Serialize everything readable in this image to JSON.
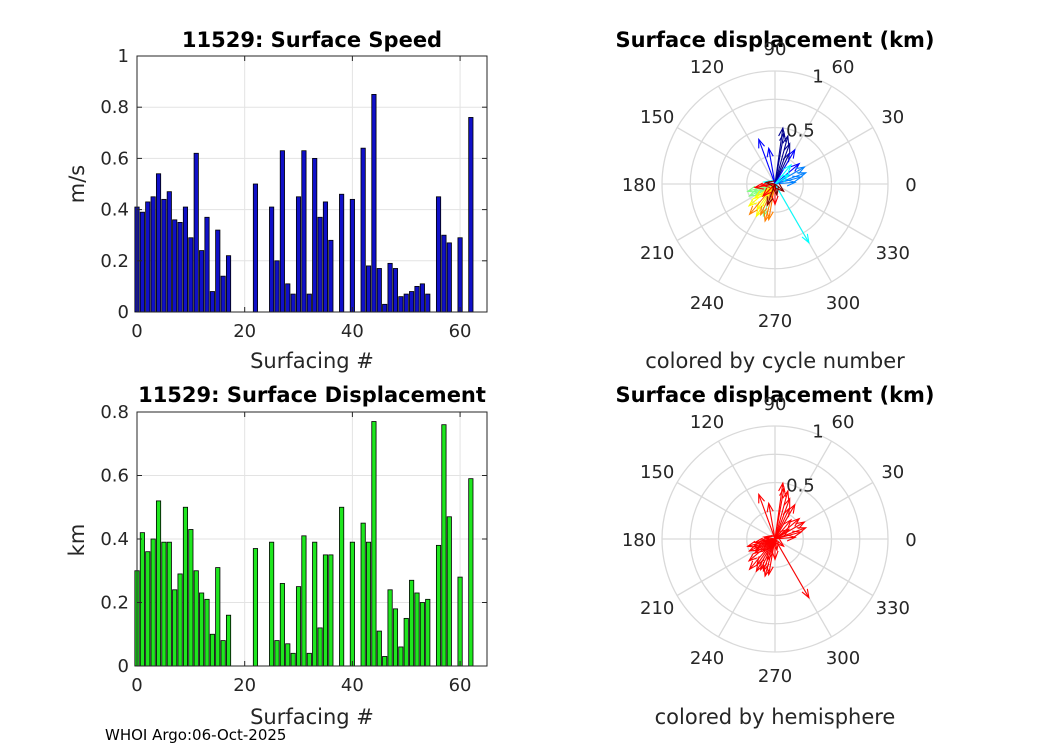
{
  "footer": "WHOI Argo:06-Oct-2025",
  "chart_data": [
    {
      "type": "bar",
      "title": "11529: Surface Speed",
      "xlabel": "Surfacing #",
      "ylabel": "m/s",
      "xlim": [
        0,
        65
      ],
      "ylim": [
        0,
        1
      ],
      "xticks": [
        "0",
        "20",
        "40",
        "60"
      ],
      "yticks": [
        "0",
        "0.2",
        "0.4",
        "0.6",
        "0.8",
        "1"
      ],
      "bar_color": "#1010c8",
      "x": [
        0,
        1,
        2,
        3,
        4,
        5,
        6,
        7,
        8,
        9,
        10,
        11,
        12,
        13,
        14,
        15,
        16,
        17,
        22,
        25,
        26,
        27,
        28,
        29,
        30,
        31,
        32,
        33,
        34,
        35,
        36,
        38,
        40,
        42,
        43,
        44,
        45,
        46,
        47,
        48,
        49,
        50,
        51,
        52,
        53,
        54,
        56,
        57,
        58,
        60,
        62
      ],
      "values": [
        0.41,
        0.39,
        0.43,
        0.45,
        0.54,
        0.44,
        0.47,
        0.36,
        0.35,
        0.41,
        0.29,
        0.62,
        0.24,
        0.37,
        0.08,
        0.32,
        0.14,
        0.22,
        0.5,
        0.41,
        0.2,
        0.63,
        0.11,
        0.07,
        0.45,
        0.63,
        0.07,
        0.6,
        0.37,
        0.43,
        0.28,
        0.46,
        0.44,
        0.64,
        0.18,
        0.85,
        0.17,
        0.03,
        0.19,
        0.17,
        0.06,
        0.07,
        0.08,
        0.1,
        0.11,
        0.07,
        0.45,
        0.3,
        0.27,
        0.29,
        0.76
      ]
    },
    {
      "type": "bar",
      "title": "11529: Surface Displacement",
      "xlabel": "Surfacing #",
      "ylabel": "km",
      "xlim": [
        0,
        65
      ],
      "ylim": [
        0,
        0.8
      ],
      "xticks": [
        "0",
        "20",
        "40",
        "60"
      ],
      "yticks": [
        "0",
        "0.2",
        "0.4",
        "0.6",
        "0.8"
      ],
      "bar_color": "#1ee61e",
      "x": [
        0,
        1,
        2,
        3,
        4,
        5,
        6,
        7,
        8,
        9,
        10,
        11,
        12,
        13,
        14,
        15,
        16,
        17,
        22,
        25,
        26,
        27,
        28,
        29,
        30,
        31,
        32,
        33,
        34,
        35,
        36,
        38,
        40,
        42,
        43,
        44,
        45,
        46,
        47,
        48,
        49,
        50,
        51,
        52,
        53,
        54,
        56,
        57,
        58,
        60,
        62
      ],
      "values": [
        0.3,
        0.42,
        0.36,
        0.4,
        0.52,
        0.39,
        0.39,
        0.24,
        0.29,
        0.5,
        0.43,
        0.3,
        0.23,
        0.21,
        0.1,
        0.31,
        0.08,
        0.16,
        0.37,
        0.39,
        0.08,
        0.26,
        0.07,
        0.04,
        0.25,
        0.41,
        0.04,
        0.39,
        0.12,
        0.35,
        0.35,
        0.5,
        0.39,
        0.45,
        0.39,
        0.77,
        0.11,
        0.03,
        0.24,
        0.18,
        0.06,
        0.15,
        0.27,
        0.23,
        0.2,
        0.21,
        0.38,
        0.76,
        0.47,
        0.28,
        0.59
      ]
    },
    {
      "type": "polar-vectors",
      "title": "Surface displacement (km)",
      "caption": "colored by cycle number",
      "rmax": 1,
      "radial_labels": [
        "0.5",
        "1"
      ],
      "angle_labels": [
        "0",
        "30",
        "60",
        "90",
        "120",
        "150",
        "180",
        "210",
        "240",
        "270",
        "300",
        "330"
      ],
      "colormap": [
        "#00008f",
        "#0000ff",
        "#0080ff",
        "#00ffff",
        "#80ff80",
        "#ffff00",
        "#ff8000",
        "#ff0000",
        "#800000"
      ],
      "vectors": [
        {
          "angle": 82,
          "r": 0.5
        },
        {
          "angle": 80,
          "r": 0.46
        },
        {
          "angle": 75,
          "r": 0.44
        },
        {
          "angle": 70,
          "r": 0.38
        },
        {
          "angle": 65,
          "r": 0.3
        },
        {
          "angle": 60,
          "r": 0.35
        },
        {
          "angle": 110,
          "r": 0.42
        },
        {
          "angle": 100,
          "r": 0.32
        },
        {
          "angle": 40,
          "r": 0.28
        },
        {
          "angle": 30,
          "r": 0.3
        },
        {
          "angle": 20,
          "r": 0.29
        },
        {
          "angle": 15,
          "r": 0.24
        },
        {
          "angle": 5,
          "r": 0.18
        },
        {
          "angle": 50,
          "r": 0.22
        },
        {
          "angle": 35,
          "r": 0.15
        },
        {
          "angle": 170,
          "r": 0.1
        },
        {
          "angle": 300,
          "r": 0.6
        },
        {
          "angle": 250,
          "r": 0.3
        },
        {
          "angle": 200,
          "r": 0.2
        },
        {
          "angle": 195,
          "r": 0.25
        },
        {
          "angle": 210,
          "r": 0.2
        },
        {
          "angle": 205,
          "r": 0.25
        },
        {
          "angle": 215,
          "r": 0.22
        },
        {
          "angle": 220,
          "r": 0.3
        },
        {
          "angle": 235,
          "r": 0.28
        },
        {
          "angle": 240,
          "r": 0.33
        },
        {
          "angle": 245,
          "r": 0.3
        },
        {
          "angle": 230,
          "r": 0.35
        },
        {
          "angle": 255,
          "r": 0.34
        },
        {
          "angle": 260,
          "r": 0.32
        },
        {
          "angle": 225,
          "r": 0.15
        },
        {
          "angle": 190,
          "r": 0.18
        },
        {
          "angle": 185,
          "r": 0.12
        },
        {
          "angle": 270,
          "r": 0.18
        },
        {
          "angle": 280,
          "r": 0.1
        },
        {
          "angle": 320,
          "r": 0.1
        },
        {
          "angle": 170,
          "r": 0.08
        },
        {
          "angle": 250,
          "r": 0.2
        }
      ]
    },
    {
      "type": "polar-vectors",
      "title": "Surface displacement (km)",
      "caption": "colored by hemisphere",
      "rmax": 1,
      "radial_labels": [
        "0.5",
        "1"
      ],
      "angle_labels": [
        "0",
        "30",
        "60",
        "90",
        "120",
        "150",
        "180",
        "210",
        "240",
        "270",
        "300",
        "330"
      ],
      "color": "#ff0000",
      "vectors": [
        {
          "angle": 82,
          "r": 0.5
        },
        {
          "angle": 80,
          "r": 0.46
        },
        {
          "angle": 75,
          "r": 0.44
        },
        {
          "angle": 70,
          "r": 0.38
        },
        {
          "angle": 65,
          "r": 0.3
        },
        {
          "angle": 60,
          "r": 0.35
        },
        {
          "angle": 110,
          "r": 0.42
        },
        {
          "angle": 100,
          "r": 0.32
        },
        {
          "angle": 40,
          "r": 0.28
        },
        {
          "angle": 30,
          "r": 0.3
        },
        {
          "angle": 20,
          "r": 0.29
        },
        {
          "angle": 15,
          "r": 0.24
        },
        {
          "angle": 5,
          "r": 0.18
        },
        {
          "angle": 50,
          "r": 0.22
        },
        {
          "angle": 35,
          "r": 0.15
        },
        {
          "angle": 170,
          "r": 0.1
        },
        {
          "angle": 300,
          "r": 0.6
        },
        {
          "angle": 250,
          "r": 0.3
        },
        {
          "angle": 200,
          "r": 0.2
        },
        {
          "angle": 195,
          "r": 0.25
        },
        {
          "angle": 210,
          "r": 0.2
        },
        {
          "angle": 205,
          "r": 0.25
        },
        {
          "angle": 215,
          "r": 0.22
        },
        {
          "angle": 220,
          "r": 0.3
        },
        {
          "angle": 235,
          "r": 0.28
        },
        {
          "angle": 240,
          "r": 0.33
        },
        {
          "angle": 245,
          "r": 0.3
        },
        {
          "angle": 230,
          "r": 0.35
        },
        {
          "angle": 255,
          "r": 0.34
        },
        {
          "angle": 260,
          "r": 0.32
        },
        {
          "angle": 225,
          "r": 0.15
        },
        {
          "angle": 190,
          "r": 0.18
        },
        {
          "angle": 185,
          "r": 0.12
        },
        {
          "angle": 270,
          "r": 0.18
        },
        {
          "angle": 280,
          "r": 0.1
        },
        {
          "angle": 320,
          "r": 0.1
        },
        {
          "angle": 170,
          "r": 0.08
        },
        {
          "angle": 250,
          "r": 0.2
        }
      ]
    }
  ]
}
